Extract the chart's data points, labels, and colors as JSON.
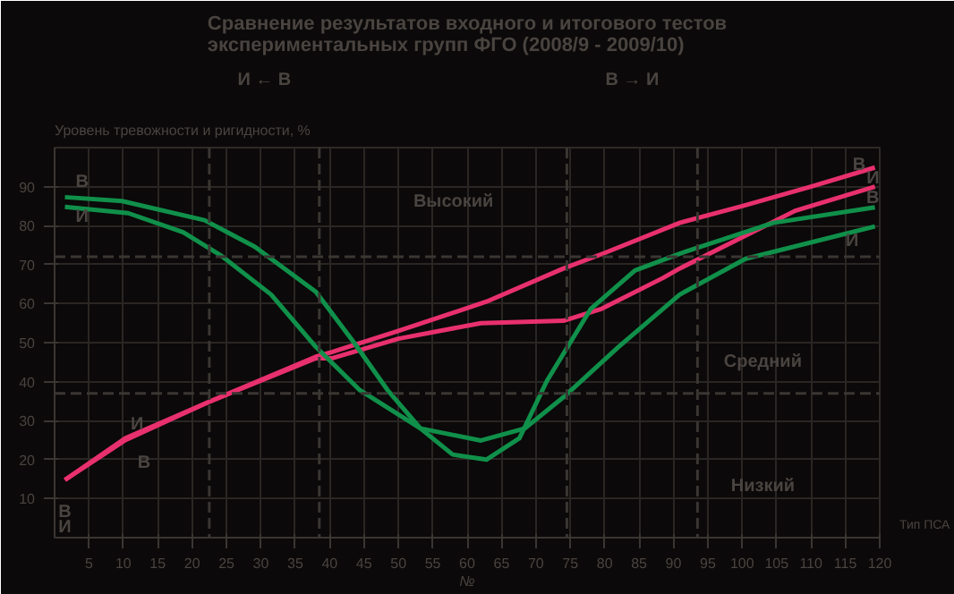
{
  "chart_data": {
    "type": "line",
    "title": "Сравнение результатов входного и итогового тестов экспериментальных групп ФГО (2008/9 - 2009/10)",
    "xlabel": "№",
    "xlim": [
      0,
      120
    ],
    "ylim": [
      0,
      100
    ],
    "xticks": [
      5,
      10,
      15,
      20,
      25,
      30,
      35,
      40,
      45,
      50,
      55,
      60,
      65,
      70,
      75,
      80,
      85,
      90,
      95,
      100,
      105,
      110,
      115,
      120
    ],
    "yticks": [
      10,
      20,
      30,
      40,
      50,
      60,
      70,
      80,
      90
    ],
    "grid": true,
    "marker": "none",
    "line_style": "solid",
    "series": [
      {
        "color": "#e8306e",
        "x": [
          1.5,
          10.3,
          22.3,
          38,
          40.4,
          50,
          62.8,
          74,
          80,
          90.9,
          100,
          110,
          119.3
        ],
        "values": [
          14.8,
          25,
          34.7,
          46.4,
          47.6,
          53,
          60.5,
          69,
          73,
          80.7,
          85,
          90,
          94.9
        ]
      },
      {
        "color": "#e8306e",
        "x": [
          1.5,
          10.3,
          22.3,
          38,
          40.4,
          50,
          62,
          74,
          79.6,
          88.5,
          90.9,
          100,
          107.7,
          119.3
        ],
        "values": [
          14.8,
          25.5,
          34.7,
          46,
          46,
          51,
          55,
          55.6,
          58.7,
          66.6,
          69,
          77,
          83.8,
          90
        ]
      },
      {
        "color": "#10904a",
        "x": [
          1.5,
          9.8,
          21.8,
          29.1,
          38,
          43.5,
          48.4,
          53.2,
          57.9,
          62.8,
          67.6,
          71.6,
          78,
          84.4,
          90.9,
          104.5,
          119.3
        ],
        "values": [
          87.3,
          86.3,
          81.4,
          74.6,
          63,
          50.1,
          37.9,
          28,
          21.3,
          20,
          25.5,
          40.2,
          58.7,
          68.5,
          72.8,
          80.7,
          84.7
        ]
      },
      {
        "color": "#10904a",
        "x": [
          1.5,
          10.7,
          18.7,
          24.3,
          31.5,
          38,
          44.4,
          53.2,
          62,
          68.4,
          74,
          82,
          90.9,
          100.5,
          119.3
        ],
        "values": [
          84.8,
          83.2,
          78.3,
          72.2,
          62.3,
          48.9,
          37.8,
          28,
          24.9,
          28,
          36,
          48.9,
          62.3,
          71.5,
          79.8
        ]
      }
    ],
    "ref_lines": [
      {
        "axis": "y",
        "value": 72,
        "color": "#3a3632",
        "line_style": "dashed"
      },
      {
        "axis": "y",
        "value": 37,
        "color": "#3a3632",
        "line_style": "dashed"
      },
      {
        "axis": "x",
        "value": 22.5,
        "color": "#3a3632",
        "line_style": "dashed"
      },
      {
        "axis": "x",
        "value": 38.5,
        "color": "#3a3632",
        "line_style": "dashed"
      },
      {
        "axis": "x",
        "value": 74.5,
        "color": "#3a3632",
        "line_style": "dashed"
      },
      {
        "axis": "x",
        "value": 93.5,
        "color": "#3a3632",
        "line_style": "dashed"
      }
    ],
    "annotations": [
      "И ← В",
      "В → И",
      "Уровень тревожности и ригидности, %",
      "Высокий",
      "Средний",
      "Низкий",
      "В",
      {
        "text": "И",
        "x": 4,
        "y": 82
      },
      {
        "text": "И",
        "x": 12,
        "y": 29
      },
      "В",
      "В",
      {
        "text": "И",
        "x": 119,
        "y": 92
      },
      {
        "text": "В",
        "x": 119,
        "y": 87
      },
      "И",
      "В",
      "И",
      "Тип ПСА"
    ]
  }
}
